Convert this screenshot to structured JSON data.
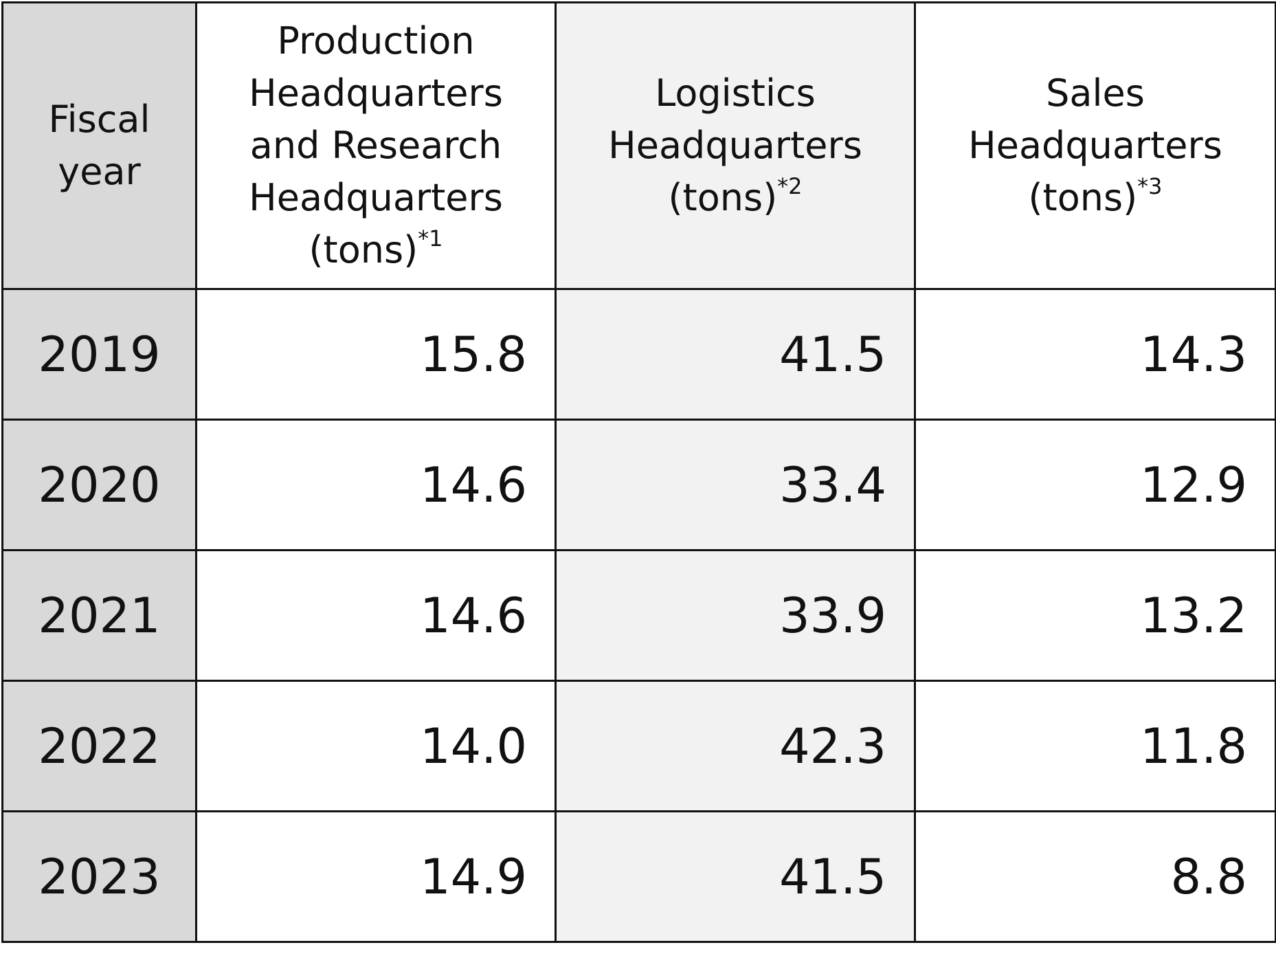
{
  "table": {
    "header": [
      {
        "text": "Fiscal year"
      },
      {
        "text": "Production Headquarters and Research Headquarters (tons)",
        "note": "*1"
      },
      {
        "text": "Logistics Headquarters (tons)",
        "note": "*2"
      },
      {
        "text": "Sales Headquarters (tons)",
        "note": "*3"
      }
    ],
    "rows": [
      [
        "2019",
        "15.8",
        "41.5",
        "14.3"
      ],
      [
        "2020",
        "14.6",
        "33.4",
        "12.9"
      ],
      [
        "2021",
        "14.6",
        "33.9",
        "13.2"
      ],
      [
        "2022",
        "14.0",
        "42.3",
        "11.8"
      ],
      [
        "2023",
        "14.9",
        "41.5",
        "8.8"
      ]
    ]
  }
}
